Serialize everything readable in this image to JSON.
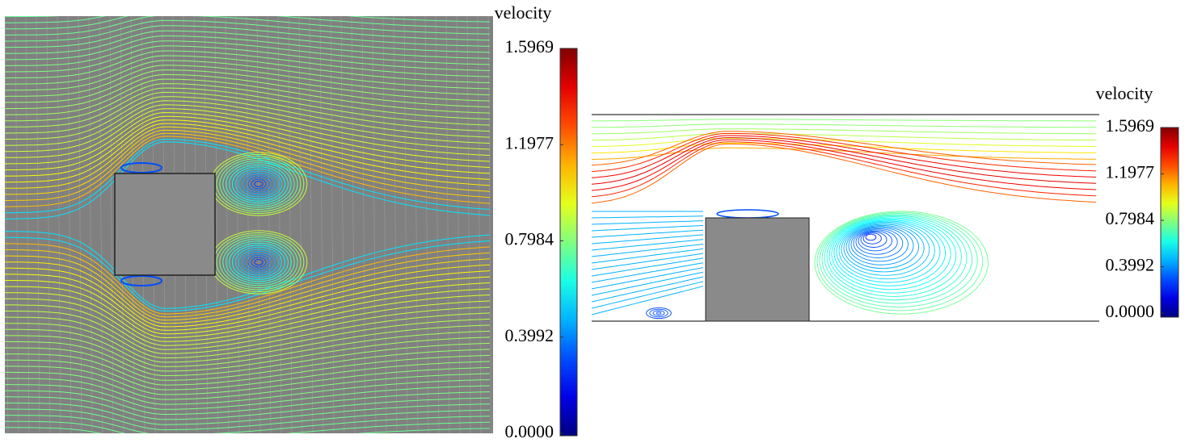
{
  "panels": [
    {
      "colorbar": {
        "title": "velocity",
        "range": [
          0,
          1.5969
        ],
        "ticks": [
          1.5969,
          1.1977,
          0.7984,
          0.3992,
          {
            "value": 0,
            "label": "0.0000"
          }
        ]
      }
    },
    {
      "colorbar": {
        "title": "velocity",
        "range": [
          0,
          1.5969
        ],
        "ticks": [
          1.5969,
          1.1977,
          0.7984,
          0.3992,
          {
            "value": 0,
            "label": "0.0000"
          }
        ]
      }
    }
  ]
}
